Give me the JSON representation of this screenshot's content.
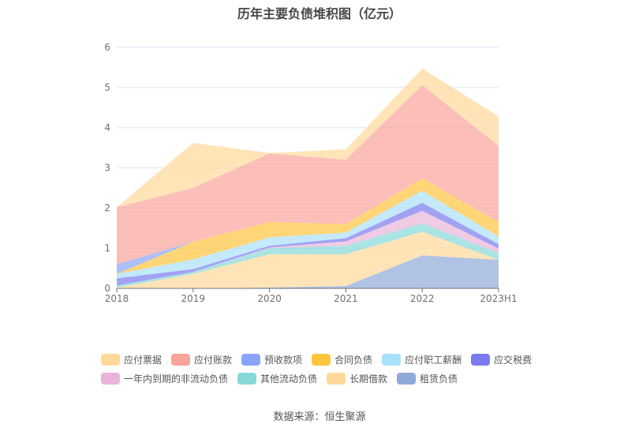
{
  "title": "历年主要负债堆积图（亿元）",
  "source": "数据来源：恒生聚源",
  "chart_data": {
    "type": "area",
    "stacked": true,
    "title": "历年主要负债堆积图（亿元）",
    "xlabel": "",
    "ylabel": "",
    "categories": [
      "2018",
      "2019",
      "2020",
      "2021",
      "2022",
      "2023H1"
    ],
    "ylim": [
      0,
      6
    ],
    "yticks": [
      "0",
      "1",
      "2",
      "3",
      "4",
      "5",
      "6"
    ],
    "grid": true,
    "legend_position": "bottom",
    "series": [
      {
        "name": "租赁负债",
        "color": "#8EAAD8",
        "values": [
          0,
          0,
          0.02,
          0.06,
          0.82,
          0.71
        ]
      },
      {
        "name": "长期借款",
        "color": "#FFD998",
        "values": [
          0.02,
          0.36,
          0.83,
          0.79,
          0.59,
          0
        ]
      },
      {
        "name": "其他流动负债",
        "color": "#86D8D9",
        "values": [
          0.05,
          0.05,
          0.15,
          0.21,
          0.21,
          0.17
        ]
      },
      {
        "name": "一年内到期的非流动负债",
        "color": "#E8B5D8",
        "values": [
          0,
          0,
          0.02,
          0.11,
          0.31,
          0.11
        ]
      },
      {
        "name": "应交税费",
        "color": "#7A7BF0",
        "values": [
          0.18,
          0.07,
          0.04,
          0.08,
          0.2,
          0.11
        ]
      },
      {
        "name": "应付职工薪酬",
        "color": "#A9E0FA",
        "values": [
          0.11,
          0.24,
          0.21,
          0.14,
          0.3,
          0.19
        ]
      },
      {
        "name": "合同负债",
        "color": "#FFC53D",
        "values": [
          0,
          0.44,
          0.38,
          0.21,
          0.31,
          0.36
        ]
      },
      {
        "name": "预收款项",
        "color": "#89A5FB",
        "values": [
          0.24,
          0,
          0,
          0,
          0,
          0
        ]
      },
      {
        "name": "应付账款",
        "color": "#F9A39A",
        "values": [
          1.42,
          1.34,
          1.71,
          1.6,
          2.32,
          1.9
        ]
      },
      {
        "name": "应付票据",
        "color": "#FFD89A",
        "values": [
          0,
          1.12,
          0.01,
          0.26,
          0.41,
          0.73
        ]
      }
    ],
    "legend_order": [
      "应付票据",
      "应付账款",
      "预收款项",
      "合同负债",
      "应付职工薪酬",
      "应交税费",
      "一年内到期的非流动负债",
      "其他流动负债",
      "长期借款",
      "租赁负债"
    ]
  }
}
